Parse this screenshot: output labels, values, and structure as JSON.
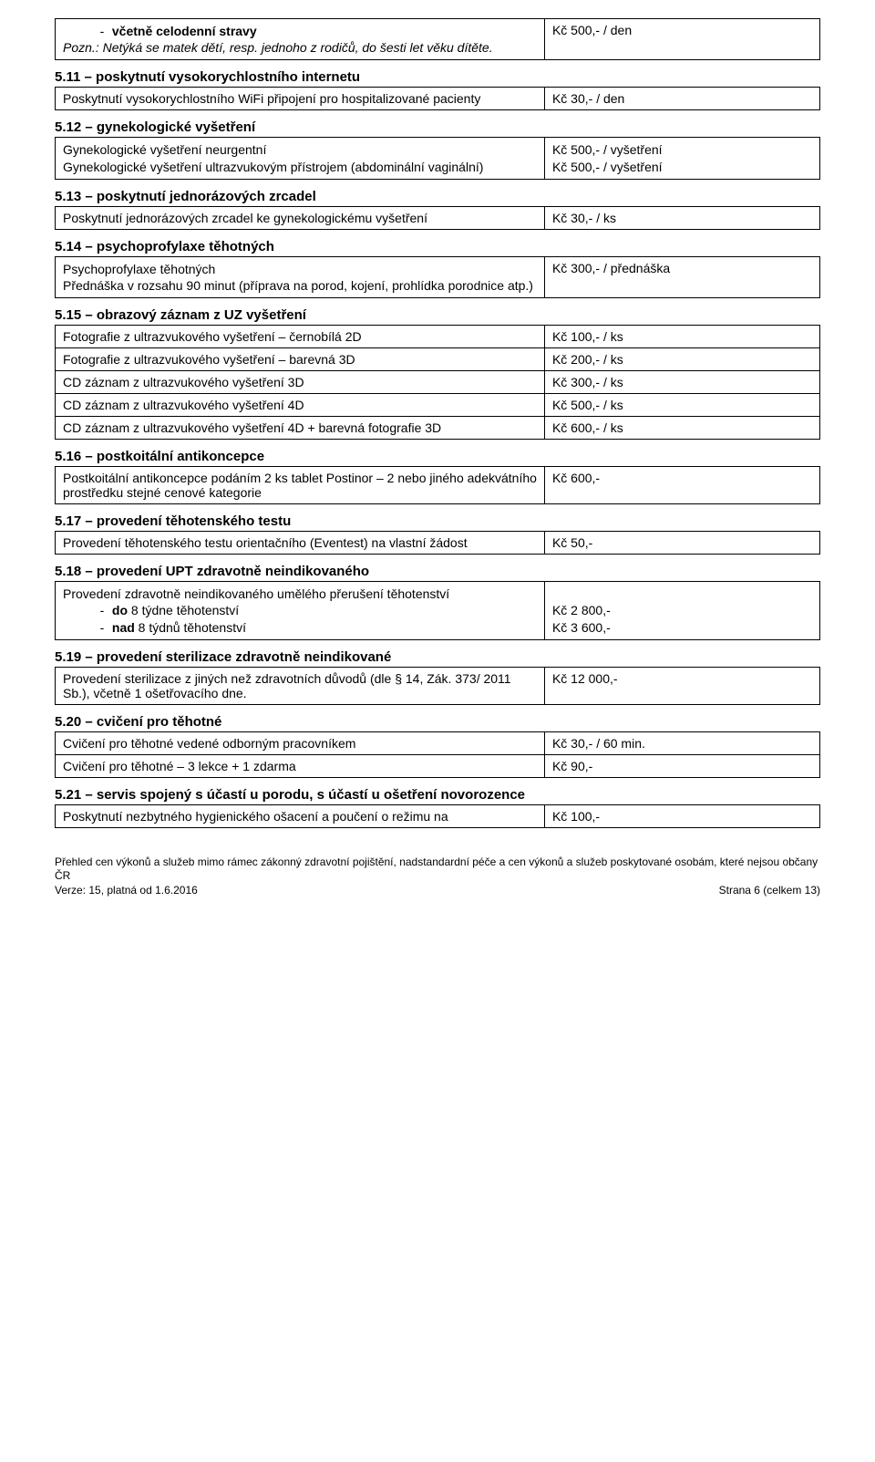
{
  "s_top": {
    "left_line1_prefix": "-",
    "left_line1_bold": "včetně celodenní stravy",
    "left_line2": "Pozn.: Netýká se matek dětí, resp. jednoho z rodičů, do šesti let věku dítěte.",
    "right": "Kč 500,- / den"
  },
  "s511": {
    "heading": "5.11 – poskytnutí vysokorychlostního internetu",
    "left": "Poskytnutí vysokorychlostního WiFi připojení pro hospitalizované pacienty",
    "right": "Kč 30,- / den"
  },
  "s512": {
    "heading": "5.12 – gynekologické vyšetření",
    "left_l1": "Gynekologické vyšetření neurgentní",
    "left_l2": "Gynekologické vyšetření ultrazvukovým přístrojem (abdominální vaginální)",
    "right_l1": "Kč  500,- / vyšetření",
    "right_l2": "Kč  500,- / vyšetření"
  },
  "s513": {
    "heading": "5.13 – poskytnutí jednorázových zrcadel",
    "left": "Poskytnutí jednorázových zrcadel ke gynekologickému vyšetření",
    "right": "Kč 30,- / ks"
  },
  "s514": {
    "heading": "5.14 – psychoprofylaxe těhotných",
    "left_l1": "Psychoprofylaxe těhotných",
    "left_l2": "Přednáška v rozsahu 90 minut (příprava na porod, kojení, prohlídka porodnice atp.)",
    "right": "Kč 300,- / přednáška"
  },
  "s515": {
    "heading": "5.15 – obrazový záznam z UZ vyšetření",
    "rows": [
      {
        "l": "Fotografie z ultrazvukového vyšetření – černobílá 2D",
        "r": "Kč 100,- / ks"
      },
      {
        "l": "Fotografie z ultrazvukového vyšetření – barevná 3D",
        "r": "Kč 200,- / ks"
      },
      {
        "l": "CD záznam z ultrazvukového vyšetření 3D",
        "r": "Kč 300,- / ks"
      },
      {
        "l": "CD záznam z ultrazvukového vyšetření 4D",
        "r": "Kč 500,- / ks"
      },
      {
        "l": "CD záznam z ultrazvukového vyšetření 4D + barevná fotografie 3D",
        "r": "Kč 600,- / ks"
      }
    ]
  },
  "s516": {
    "heading": "5.16 – postkoitální antikoncepce",
    "left": "Postkoitální antikoncepce podáním 2 ks tablet Postinor – 2 nebo jiného adekvátního prostředku stejné cenové kategorie",
    "right": "Kč 600,-"
  },
  "s517": {
    "heading": "5.17 – provedení těhotenského testu",
    "left": "Provedení těhotenského testu orientačního (Eventest) na vlastní žádost",
    "right": "Kč 50,-"
  },
  "s518": {
    "heading": "5.18 – provedení UPT zdravotně neindikovaného",
    "left_l1": "Provedení zdravotně neindikovaného umělého přerušení těhotenství",
    "left_l2_prefix": "-",
    "left_l2_bold": "do",
    "left_l2_rest": " 8 týdne těhotenství",
    "left_l3_prefix": "-",
    "left_l3_bold": "nad",
    "left_l3_rest": " 8 týdnů těhotenství",
    "right_l2": "Kč 2 800,-",
    "right_l3": "Kč 3 600,-"
  },
  "s519": {
    "heading": "5.19 – provedení sterilizace zdravotně neindikované",
    "left": "Provedení sterilizace z jiných než zdravotních důvodů (dle § 14, Zák. 373/ 2011 Sb.), včetně 1 ošetřovacího dne.",
    "right": "Kč 12 000,-"
  },
  "s520": {
    "heading": "5.20 – cvičení pro těhotné",
    "rows": [
      {
        "l": "Cvičení pro těhotné vedené odborným pracovníkem",
        "r": "Kč 30,- / 60 min."
      },
      {
        "l": "Cvičení pro těhotné – 3 lekce + 1 zdarma",
        "r": "Kč 90,-"
      }
    ]
  },
  "s521": {
    "heading": "5.21 – servis spojený s účastí u porodu, s účastí u ošetření novorozence",
    "left": "Poskytnutí nezbytného hygienického ošacení a poučení o režimu na",
    "right": "Kč 100,-"
  },
  "footer": {
    "line1": "Přehled cen výkonů a služeb mimo rámec zákonný zdravotní pojištění, nadstandardní péče a cen výkonů a služeb poskytované osobám, které nejsou občany ČR",
    "line2_left": "Verze: 15, platná od 1.6.2016",
    "line2_right": "Strana 6 (celkem 13)"
  }
}
